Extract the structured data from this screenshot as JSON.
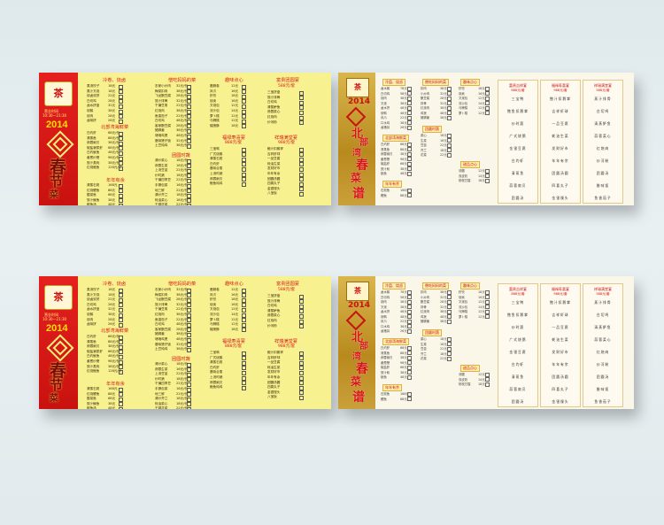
{
  "cards": [
    {
      "left": {
        "logo": "茶",
        "hours_label": "营业时间",
        "hours": "10:30—21:30",
        "year": "2014",
        "title_chars": [
          "春",
          "节",
          "菜",
          "谱"
        ],
        "sections": [
          {
            "head": "冷卷、烧卤",
            "items": [
              [
                "蒸汤饺子",
                "18元"
              ],
              [
                "蒸汁叉烧",
                "18元"
              ],
              [
                "烧卤双拼",
                "22元"
              ],
              [
                "白切鸡",
                "28元"
              ],
              [
                "卤水拼盘",
                "32元"
              ],
              [
                "烧鹅",
                "38元"
              ],
              [
                "烧肉",
                "28元"
              ],
              [
                "卤味拼",
                "26元"
              ]
            ]
          },
          {
            "head": "北部湾海鲜菜",
            "items": [
              [
                "白灼虾",
                "68元/份"
              ],
              [
                "清蒸鱼",
                "88元/份"
              ],
              [
                "蒜蓉扇贝",
                "38元/份"
              ],
              [
                "椒盐濑尿虾",
                "68元/份"
              ],
              [
                "白灼鱿鱼",
                "48元/份"
              ],
              [
                "姜葱炒蟹",
                "98元/份"
              ],
              [
                "豉汁蒸蚝",
                "38元/份"
              ],
              [
                "红烧鲍鱼",
                "128元/份"
              ]
            ]
          },
          {
            "head": "年年有余",
            "items": [
              [
                "清蒸石斑",
                "168元"
              ],
              [
                "红烧鲤鱼",
                "88元"
              ],
              [
                "酸菜鱼",
                "68元"
              ],
              [
                "豉汁鲮鱼",
                "38元"
              ],
              [
                "鲜鱼汤",
                "48元"
              ],
              [
                "糖醋鱼",
                "58元"
              ]
            ]
          },
          {
            "head": "僧吃妈妈的菜",
            "items": [
              [
                "农家小炒肉",
                "32元/份"
              ],
              [
                "梅菜扣肉",
                "38元/份"
              ],
              [
                "飞龙酿豆腐",
                "28元/份"
              ],
              [
                "豉汁排骨",
                "32元/份"
              ],
              [
                "干煸豆角",
                "22元/份"
              ],
              [
                "红烧肉",
                "38元/份"
              ],
              [
                "鱼香茄子",
                "22元/份"
              ],
              [
                "白切鸡",
                "48元/份"
              ],
              [
                "客家酿豆腐",
                "28元/份"
              ],
              [
                "猪脚姜",
                "38元/份"
              ],
              [
                "啫啫鸡煲",
                "48元/份"
              ],
              [
                "腊味煲仔饭",
                "32元/份"
              ],
              [
                "土豆炖鸡",
                "36元/份"
              ]
            ]
          },
          {
            "head": "团圆时蔬",
            "items": [
              [
                "清炒菜心",
                "18元/份"
              ],
              [
                "蒜蓉生菜",
                "16元/份"
              ],
              [
                "上汤豆苗",
                "22元/份"
              ],
              [
                "炒时蔬",
                "18元/份"
              ],
              [
                "干煸四季豆",
                "22元/份"
              ],
              [
                "手撕包菜",
                "16元/份"
              ],
              [
                "地三鲜",
                "22元/份"
              ],
              [
                "清炒芥兰",
                "18元/份"
              ],
              [
                "蚝油菜心",
                "18元/份"
              ],
              [
                "干锅花菜",
                "22元/份"
              ]
            ]
          },
          {
            "head": "趣味点心",
            "items": [
              [
                "腊肠卷",
                "12元"
              ],
              [
                "凤爪",
                "16元"
              ],
              [
                "虾饺",
                "18元"
              ],
              [
                "烧卖",
                "16元"
              ],
              [
                "叉烧包",
                "12元"
              ],
              [
                "流沙包",
                "14元"
              ],
              [
                "萝卜糕",
                "12元"
              ],
              [
                "马蹄糕",
                "12元"
              ],
              [
                "榴莲酥",
                "18元"
              ]
            ]
          },
          {
            "head": "福禄寿喜宴",
            "sub": "888元/套",
            "items": [
              [
                "三宝鸭",
                ""
              ],
              [
                "广式烧鹅",
                ""
              ],
              [
                "清蒸石斑",
                ""
              ],
              [
                "白灼虾",
                ""
              ],
              [
                "腊味合蒸",
                ""
              ],
              [
                "上汤时蔬",
                ""
              ],
              [
                "蒜蓉扇贝",
                ""
              ],
              [
                "鲍鱼炖鸡",
                ""
              ]
            ]
          },
          {
            "head": "富贵团圆宴",
            "sub": "588元/套",
            "items": [
              [
                "三宝拼盘",
                ""
              ],
              [
                "豉汁排骨",
                ""
              ],
              [
                "白切鸡",
                ""
              ],
              [
                "清蒸鲈鱼",
                ""
              ],
              [
                "蒜蓉菜心",
                ""
              ],
              [
                "红烧肉",
                ""
              ],
              [
                "炒河粉",
                ""
              ]
            ]
          },
          {
            "head": "祥瑞满堂宴",
            "sub": "988元/套",
            "items": [
              [
                "鲍汁扣鹅掌",
                ""
              ],
              [
                "吉祥虾球",
                ""
              ],
              [
                "一品豆腐",
                ""
              ],
              [
                "蚝油生菜",
                ""
              ],
              [
                "发财好市",
                ""
              ],
              [
                "年年有余",
                ""
              ],
              [
                "团圆汤圆",
                ""
              ],
              [
                "四喜丸子",
                ""
              ],
              [
                "金银馒头",
                ""
              ],
              [
                "八宝饭",
                ""
              ]
            ]
          }
        ]
      },
      "right": {
        "logo": "茶",
        "year": "2014",
        "title_top": [
          "北",
          "部",
          "湾"
        ],
        "title_mid": "家宴",
        "title_chars": [
          "春",
          "节",
          "菜",
          "谱"
        ],
        "sections": [
          {
            "head": "冷盘、烧卤",
            "items": [
              [
                "卤水鹅",
                "78元"
              ],
              [
                "白切鸡",
                "58元"
              ],
              [
                "烧肉",
                "38元"
              ],
              [
                "叉烧",
                "38元"
              ],
              [
                "卤水拼",
                "48元"
              ],
              [
                "烧鸭",
                "48元"
              ],
              [
                "凤爪",
                "22元"
              ],
              [
                "口水鸡",
                "38元"
              ],
              [
                "卤猪耳",
                "26元"
              ]
            ]
          },
          {
            "head": "北部湾海鲜菜",
            "items": [
              [
                "白灼虾",
                "68元"
              ],
              [
                "清蒸鱼",
                "88元"
              ],
              [
                "蒜蓉扇贝",
                "38元"
              ],
              [
                "姜葱蟹",
                "98元"
              ],
              [
                "椒盐虾",
                "68元"
              ],
              [
                "豉汁蚝",
                "38元"
              ],
              [
                "鱿鱼",
                "48元"
              ]
            ]
          },
          {
            "head": "年年有余",
            "items": [
              [
                "石斑鱼",
                "168元"
              ],
              [
                "鲤鱼",
                "88元"
              ]
            ]
          },
          {
            "head": "僧吃妈妈的菜",
            "items": [
              [
                "扣肉",
                "38元"
              ],
              [
                "小炒肉",
                "32元"
              ],
              [
                "酿豆腐",
                "28元"
              ],
              [
                "排骨",
                "32元"
              ],
              [
                "红烧肉",
                "38元"
              ],
              [
                "鸡煲",
                "48元"
              ],
              [
                "猪脚姜",
                "38元"
              ]
            ]
          },
          {
            "head": "团圆时蔬",
            "items": [
              [
                "菜心",
                "18元"
              ],
              [
                "生菜",
                "16元"
              ],
              [
                "豆苗",
                "22元"
              ],
              [
                "芥兰",
                "18元"
              ],
              [
                "花菜",
                "22元"
              ]
            ]
          },
          {
            "head": "趣味点心",
            "items": [
              [
                "虾饺",
                "18元"
              ],
              [
                "烧卖",
                "16元"
              ],
              [
                "叉烧包",
                "12元"
              ],
              [
                "流沙包",
                "14元"
              ],
              [
                "马蹄糕",
                "12元"
              ],
              [
                "萝卜糕",
                "12元"
              ]
            ]
          },
          {
            "head": "甜品点心",
            "items": [
              [
                "汤圆",
                "12元"
              ],
              [
                "双皮奶",
                "14元"
              ],
              [
                "杨枝甘露",
                "18元"
              ]
            ]
          }
        ],
        "sets": [
          {
            "head": "富贵吉祥宴",
            "sub": "888元/套",
            "items": [
              "三宝鸭",
              "鲍鱼扣鹅掌",
              "炒时蔬",
              "广式烧鹅",
              "金银豆腐",
              "白灼虾",
              "清蒸鱼",
              "蒜蓉扇贝",
              "团圆汤",
              "八宝饭"
            ]
          },
          {
            "head": "福禄寿喜宴",
            "sub": "988元/套",
            "items": [
              "鲍汁扣鹅掌",
              "吉祥虾球",
              "一品豆腐",
              "蚝油生菜",
              "发财好市",
              "年年有余",
              "团圆汤圆",
              "四喜丸子",
              "金银馒头",
              "八宝饭"
            ]
          },
          {
            "head": "祥瑞满堂宴",
            "sub": "588元/套",
            "items": [
              "蒸汁排骨",
              "白切鸡",
              "清蒸鲈鱼",
              "蒜蓉菜心",
              "红烧肉",
              "炒河粉",
              "团圆汤",
              "腊味饭",
              "鱼香茄子",
              "水果"
            ]
          }
        ]
      }
    }
  ]
}
